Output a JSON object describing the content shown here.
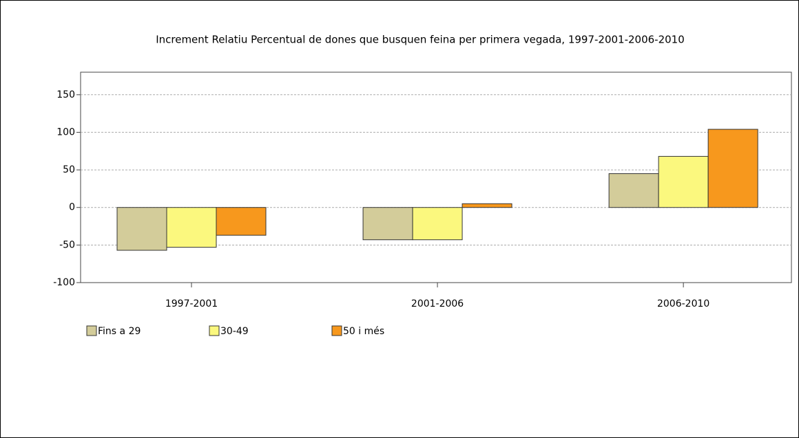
{
  "chart_data": {
    "type": "bar",
    "title": "Increment Relatiu Percentual de dones que busquen feina per primera vegada, 1997-2001-2006-2010",
    "categories": [
      "1997-2001",
      "2001-2006",
      "2006-2010"
    ],
    "series": [
      {
        "name": "Fins a 29",
        "color": "#d3cc9a",
        "values": [
          -57,
          -43,
          45
        ]
      },
      {
        "name": "30-49",
        "color": "#fbf87e",
        "values": [
          -53,
          -43,
          68
        ]
      },
      {
        "name": "50 i més",
        "color": "#f7981d",
        "values": [
          -37,
          5,
          104
        ]
      }
    ],
    "ylim": [
      -100,
      180
    ],
    "yticks": [
      -100,
      -50,
      0,
      50,
      100,
      150
    ],
    "grid": true
  }
}
